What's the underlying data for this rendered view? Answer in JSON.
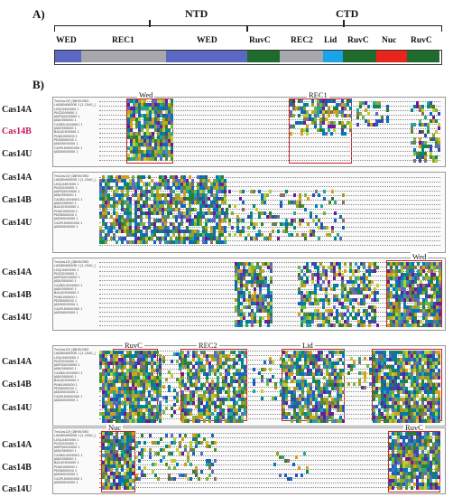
{
  "panel_a": {
    "label": "A)",
    "ntd_title": "NTD",
    "ctd_title": "CTD",
    "segments": [
      {
        "name": "WED",
        "color": "#5b68c2"
      },
      {
        "name": "REC1",
        "color": "#a7a7ad"
      },
      {
        "name": "WED",
        "color": "#5b68c2"
      },
      {
        "name": "RuvC",
        "color": "#1f6b2d"
      },
      {
        "name": "REC2",
        "color": "#a7a7ad"
      },
      {
        "name": "Lid",
        "color": "#1aa3e8"
      },
      {
        "name": "RuvC",
        "color": "#1f6b2d"
      },
      {
        "name": "Nuc",
        "color": "#e8251c"
      },
      {
        "name": "RuvC",
        "color": "#1f6b2d"
      }
    ]
  },
  "panel_b": {
    "label": "B)",
    "groups": [
      "Cas14A",
      "Cas14B",
      "Cas14U"
    ],
    "blocks": [
      {
        "labels": [
          "Wed",
          "REC1"
        ]
      },
      {
        "labels": []
      },
      {
        "labels": [
          "Wed"
        ]
      },
      {
        "labels": [
          "RuvC",
          "REC2",
          "Lid"
        ]
      },
      {
        "labels": [
          "Nuc",
          "RuvC"
        ]
      },
      {
        "labels": []
      }
    ],
    "seq_names": "TnsCas12f_QBH5U3H2\nLA0J8040000B 1 [1-1540_]\nLOQL0400000 1\nPUG2000000 1\nJA0PQ0000000 1\nJA0J0000000 1\nCA2B2L0000001 1\nJA0J0000000 1\nBALQ0300000 1\nPUWL000000 1\nPEZB000000 1\nJA0D0000000 1\nCA2PL00000000 1\nJA0D0000000 1"
  }
}
